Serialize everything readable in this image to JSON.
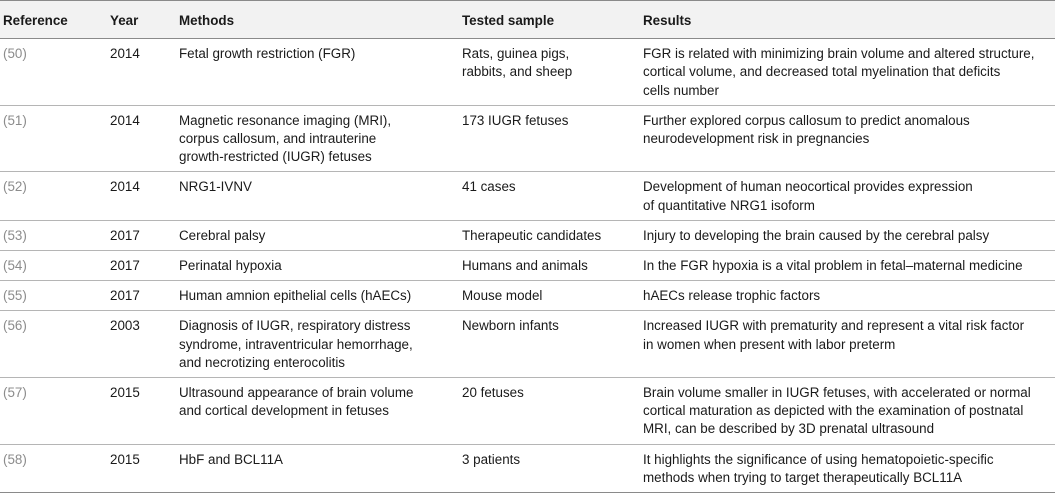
{
  "headers": {
    "reference": "Reference",
    "year": "Year",
    "methods": "Methods",
    "tested_sample": "Tested sample",
    "results": "Results"
  },
  "rows": [
    {
      "ref": "(50)",
      "year": "2014",
      "methods": "Fetal growth restriction (FGR)",
      "sample": "Rats, guinea pigs,\nrabbits, and sheep",
      "results": "FGR is related with minimizing brain volume and altered structure,\ncortical volume, and decreased total myelination that deficits\ncells number"
    },
    {
      "ref": "(51)",
      "year": "2014",
      "methods": "Magnetic resonance imaging (MRI),\n corpus callosum, and intrauterine\ngrowth-restricted (IUGR) fetuses",
      "sample": "173 IUGR fetuses",
      "results": "Further explored corpus callosum to predict anomalous\nneurodevelopment risk in pregnancies"
    },
    {
      "ref": "(52)",
      "year": "2014",
      "methods": "NRG1-IVNV",
      "sample": "41 cases",
      "results": "Development of human neocortical provides expression\nof quantitative NRG1 isoform"
    },
    {
      "ref": "(53)",
      "year": "2017",
      "methods": "Cerebral palsy",
      "sample": "Therapeutic candidates",
      "results": "Injury to developing the brain caused by the cerebral palsy"
    },
    {
      "ref": "(54)",
      "year": "2017",
      "methods": "Perinatal hypoxia",
      "sample": "Humans and animals",
      "results": "In the FGR hypoxia is a vital problem in fetal–maternal medicine"
    },
    {
      "ref": "(55)",
      "year": "2017",
      "methods": "Human amnion epithelial cells (hAECs)",
      "sample": "Mouse model",
      "results": "hAECs release trophic factors"
    },
    {
      "ref": "(56)",
      "year": "2003",
      "methods": "Diagnosis of IUGR, respiratory distress\nsyndrome, intraventricular hemorrhage,\nand necrotizing enterocolitis",
      "sample": "Newborn infants",
      "results": "Increased IUGR with prematurity and represent a vital risk factor\nin women when present with labor preterm"
    },
    {
      "ref": "(57)",
      "year": "2015",
      "methods": "Ultrasound appearance of brain volume\nand cortical development in fetuses",
      "sample": "20 fetuses",
      "results": "Brain volume smaller in IUGR fetuses, with accelerated or normal\ncortical maturation as depicted with the examination of postnatal\nMRI, can be described by 3D prenatal ultrasound"
    },
    {
      "ref": "(58)",
      "year": "2015",
      "methods": "HbF and BCL11A",
      "sample": "3 patients",
      "results": "It highlights the significance of using hematopoietic-specific\nmethods when trying to target therapeutically BCL11A"
    }
  ]
}
